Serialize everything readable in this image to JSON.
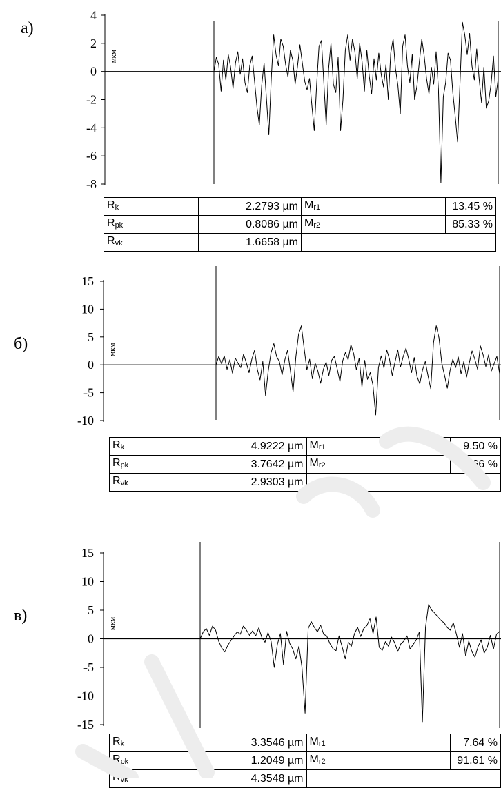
{
  "chart_data": [
    {
      "type": "line",
      "panel_label": "а)",
      "ylabel": "мкм",
      "ylim": [
        -8,
        4
      ],
      "yticks": [
        4,
        2,
        0,
        -2,
        -4,
        -6,
        -8
      ],
      "y_tick_labels": [
        "4",
        "2",
        "0",
        "-2",
        "-4",
        "-6",
        "-8"
      ],
      "series": [
        {
          "values": [
            0.0,
            1.0,
            0.5,
            -1.4,
            0.8,
            -0.6,
            1.2,
            0.3,
            -1.2,
            0.6,
            1.4,
            -0.2,
            0.9,
            -0.8,
            -1.5,
            0.4,
            1.1,
            -0.7,
            -2.5,
            -3.8,
            -1.0,
            0.6,
            -2.0,
            -4.5,
            -0.5,
            2.6,
            1.2,
            0.4,
            2.3,
            1.8,
            0.5,
            -0.4,
            1.5,
            0.8,
            -0.9,
            0.4,
            1.9,
            0.6,
            -0.7,
            -1.3,
            -0.5,
            -2.4,
            -4.2,
            -0.9,
            1.8,
            2.2,
            -0.8,
            -3.8,
            0.2,
            2.0,
            -0.9,
            -1.5,
            1.0,
            -4.2,
            -2.0,
            1.5,
            2.6,
            0.8,
            2.3,
            1.4,
            -0.5,
            2.0,
            0.7,
            -1.4,
            1.5,
            -0.3,
            -1.6,
            0.9,
            -0.6,
            1.3,
            -0.2,
            -1.1,
            0.5,
            -2.0,
            1.3,
            2.3,
            0.2,
            -1.0,
            -3.0,
            1.8,
            2.6,
            0.4,
            -0.8,
            1.2,
            -2.0,
            -1.0,
            0.7,
            2.3,
            1.1,
            -0.5,
            -1.6,
            0.3,
            -0.9,
            1.4,
            -1.3,
            -7.9,
            -1.8,
            -0.8,
            1.3,
            0.8,
            -1.5,
            -3.2,
            -5.0,
            -0.8,
            3.5,
            2.6,
            1.2,
            2.7,
            0.4,
            -0.6,
            1.6,
            -0.5,
            -2.2,
            0.3,
            -2.6,
            -2.1,
            -0.9,
            1.1,
            -1.8,
            -0.5
          ]
        }
      ],
      "table": {
        "Rk": "2.2793 µm",
        "Rpk": "0.8086 µm",
        "Rvk": "1.6658 µm",
        "Mr1": "13.45 %",
        "Mr2": "85.33 %"
      }
    },
    {
      "type": "line",
      "panel_label": "б)",
      "ylabel": "мкм",
      "ylim": [
        -10,
        15
      ],
      "yticks": [
        15,
        10,
        5,
        0,
        -5,
        -10
      ],
      "y_tick_labels": [
        "15",
        "10",
        "5",
        "0",
        "-5",
        "-10"
      ],
      "series": [
        {
          "values": [
            0.0,
            1.5,
            0.2,
            1.6,
            -0.8,
            0.9,
            -1.5,
            1.2,
            0.3,
            -0.5,
            1.9,
            0.4,
            -1.4,
            1.0,
            2.6,
            -0.8,
            -2.7,
            0.6,
            -5.5,
            -1.0,
            2.2,
            3.8,
            1.5,
            0.6,
            -1.8,
            0.9,
            2.6,
            -0.9,
            -4.8,
            1.4,
            5.5,
            7.0,
            3.0,
            -0.9,
            1.0,
            -2.5,
            0.3,
            -1.1,
            -3.3,
            -0.8,
            0.5,
            -1.9,
            0.8,
            1.5,
            -0.7,
            -3.0,
            0.7,
            2.2,
            0.9,
            3.6,
            2.0,
            -0.9,
            1.2,
            -4.0,
            0.8,
            -2.6,
            -1.4,
            -3.6,
            -9.0,
            -0.5,
            1.6,
            -0.6,
            2.7,
            1.0,
            -1.9,
            0.5,
            2.7,
            -0.4,
            1.5,
            3.0,
            1.0,
            -1.4,
            1.3,
            -2.1,
            -3.4,
            -0.9,
            0.6,
            -2.0,
            -4.3,
            4.0,
            7.0,
            4.8,
            0.3,
            -1.9,
            -4.2,
            -1.0,
            1.0,
            -0.5,
            1.4,
            -1.6,
            0.6,
            -2.2,
            0.4,
            2.5,
            1.0,
            -0.8,
            3.4,
            1.8,
            -0.3,
            1.8,
            -1.1,
            0.2,
            1.5,
            -1.6
          ]
        }
      ],
      "table": {
        "Rk": "4.9222 µm",
        "Rpk": "3.7642 µm",
        "Rvk": "2.9303 µm",
        "Mr1": "9.50 %",
        "Mr2": "88.66 %"
      }
    },
    {
      "type": "line",
      "panel_label": "в)",
      "ylabel": "мкм",
      "ylim": [
        -15,
        15
      ],
      "yticks": [
        15,
        10,
        5,
        0,
        -5,
        -10,
        -15
      ],
      "y_tick_labels": [
        "15",
        "10",
        "5",
        "0",
        "-5",
        "-10",
        "-15"
      ],
      "series": [
        {
          "values": [
            0.0,
            1.2,
            1.8,
            0.6,
            2.2,
            1.5,
            -0.4,
            -1.6,
            -2.3,
            -1.1,
            -0.3,
            0.5,
            1.2,
            0.8,
            2.2,
            1.5,
            0.6,
            1.4,
            0.5,
            1.9,
            0.2,
            -0.6,
            1.1,
            -0.5,
            -5.0,
            -1.0,
            0.9,
            -4.5,
            1.3,
            -0.8,
            -1.8,
            -3.5,
            -1.3,
            -5.0,
            -13.0,
            1.8,
            3.0,
            2.0,
            1.2,
            2.4,
            0.8,
            0.5,
            -0.8,
            -1.7,
            -2.1,
            0.5,
            -1.4,
            -3.5,
            -0.6,
            -1.3,
            0.9,
            2.0,
            0.4,
            1.8,
            2.3,
            3.5,
            0.9,
            3.8,
            -1.5,
            -2.0,
            -0.5,
            -1.3,
            0.3,
            -0.7,
            -2.2,
            -0.9,
            -0.4,
            0.5,
            -1.8,
            -1.0,
            -0.2,
            1.2,
            -14.5,
            2.0,
            6.0,
            5.0,
            4.5,
            3.8,
            3.2,
            2.8,
            2.0,
            1.5,
            2.8,
            0.8,
            -1.5,
            0.9,
            -3.0,
            -0.4,
            -2.2,
            -3.2,
            -1.4,
            -0.2,
            -2.5,
            -1.5,
            0.6,
            -1.8,
            0.8,
            1.3
          ]
        }
      ],
      "table": {
        "Rk": "3.3546 µm",
        "Rpk": "1.2049 µm",
        "Rvk": "4.3548 µm",
        "Mr1": "7.64 %",
        "Mr2": "91.61 %"
      }
    }
  ],
  "param_names": {
    "R": "R",
    "M": "M",
    "k": "k",
    "pk": "pk",
    "vk": "vk",
    "r1": "r1",
    "r2": "r2"
  }
}
